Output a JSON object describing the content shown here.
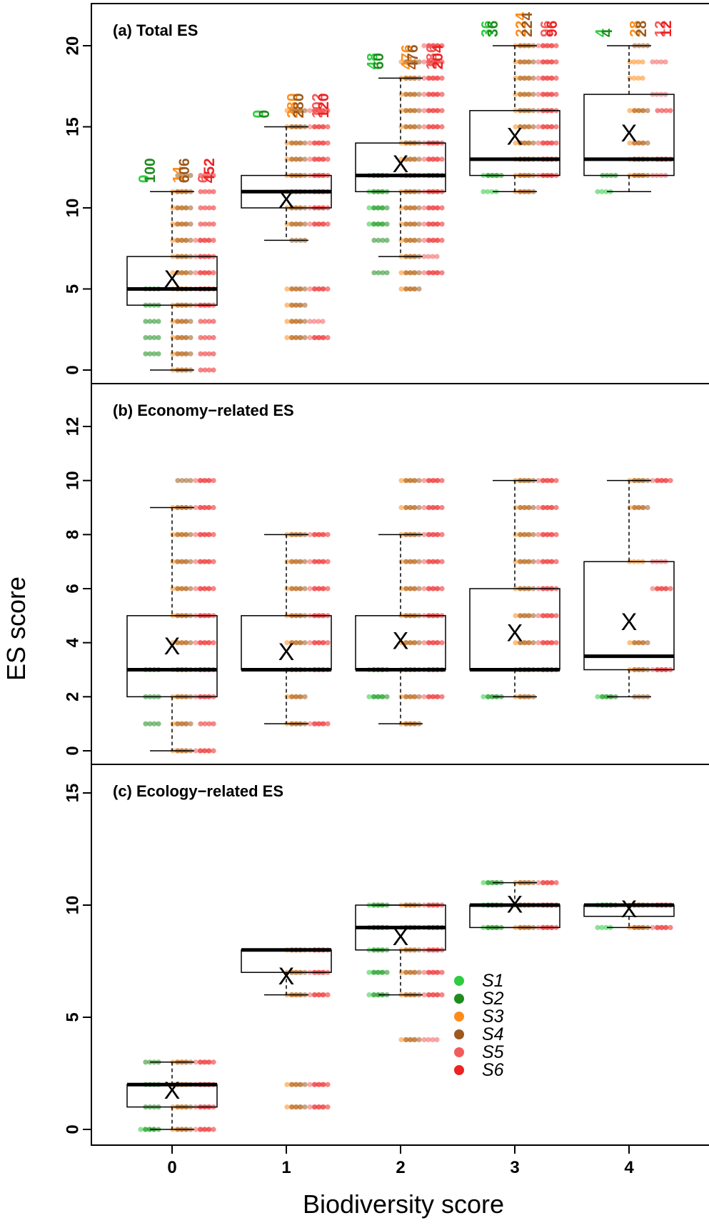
{
  "chart_data": {
    "type": "box",
    "ylabel": "ES score",
    "xlabel": "Biodiversity score",
    "categories": [
      "0",
      "1",
      "2",
      "3",
      "4"
    ],
    "legend": {
      "position": "bottom-center",
      "items": [
        {
          "name": "S1",
          "color": "#2ecc40"
        },
        {
          "name": "S2",
          "color": "#1e8c1e"
        },
        {
          "name": "S3",
          "color": "#ff8c1a"
        },
        {
          "name": "S4",
          "color": "#9c5a1e"
        },
        {
          "name": "S5",
          "color": "#f25c5c"
        },
        {
          "name": "S6",
          "color": "#ee2222"
        }
      ]
    },
    "panels": [
      {
        "title": "(a) Total ES",
        "ylim": [
          -0.5,
          22.2
        ],
        "yticks": [
          0,
          5,
          10,
          15,
          20
        ],
        "boxes": [
          {
            "x": 0,
            "min": 0,
            "q1": 4,
            "median": 5,
            "q3": 7,
            "max": 11,
            "mean": 5.5
          },
          {
            "x": 1,
            "min": 8,
            "q1": 10,
            "median": 11,
            "q3": 12,
            "max": 15,
            "mean": 10.4
          },
          {
            "x": 2,
            "min": 7,
            "q1": 11,
            "median": 12,
            "q3": 14,
            "max": 18,
            "mean": 12.6
          },
          {
            "x": 3,
            "min": 11,
            "q1": 12,
            "median": 13,
            "q3": 16,
            "max": 20,
            "mean": 14.3
          },
          {
            "x": 4,
            "min": 11,
            "q1": 12,
            "median": 13,
            "q3": 17,
            "max": 20,
            "mean": 14.5
          }
        ],
        "counts": [
          {
            "x": 0,
            "values": [
              "0",
              "100",
              "14",
              "606",
              "6",
              "452"
            ]
          },
          {
            "x": 1,
            "values": [
              "0",
              "0",
              "280",
              "280",
              "102",
              "120"
            ]
          },
          {
            "x": 2,
            "values": [
              "48",
              "60",
              "476",
              "476",
              "186",
              "204"
            ]
          },
          {
            "x": 3,
            "values": [
              "36",
              "36",
              "224",
              "224",
              "96",
              "96"
            ]
          },
          {
            "x": 4,
            "values": [
              "4",
              "4",
              "28",
              "28",
              "12",
              "12"
            ]
          }
        ],
        "points": [
          {
            "x": 0,
            "series": [
              [],
              [
                1,
                2,
                3,
                4,
                5
              ],
              [
                0,
                1,
                2,
                3,
                4,
                5,
                6,
                7,
                8,
                9,
                10,
                11
              ],
              [
                0,
                1,
                2,
                3,
                4,
                5,
                6,
                7,
                8,
                9,
                10,
                11,
                12
              ],
              [
                4,
                5,
                6,
                7,
                8
              ],
              [
                0,
                1,
                2,
                3,
                4,
                5,
                6,
                7,
                8,
                9,
                10,
                11,
                12
              ]
            ]
          },
          {
            "x": 1,
            "series": [
              [],
              [],
              [
                2,
                3,
                4,
                5,
                9,
                10,
                11,
                12,
                13,
                14,
                15,
                16
              ],
              [
                2,
                3,
                4,
                5,
                8,
                9,
                10,
                11,
                12,
                13,
                14,
                15,
                16
              ],
              [
                2,
                3,
                5,
                9,
                10,
                11,
                12,
                13,
                14,
                15,
                16
              ],
              [
                2,
                5,
                9,
                10,
                11,
                12,
                13,
                14,
                15,
                16
              ]
            ]
          },
          {
            "x": 2,
            "series": [
              [
                9,
                10,
                11,
                12
              ],
              [
                6,
                8,
                9,
                10,
                11,
                12
              ],
              [
                5,
                6,
                7,
                8,
                9,
                10,
                11,
                12,
                13,
                14,
                15,
                16,
                17,
                18,
                19
              ],
              [
                5,
                6,
                7,
                8,
                9,
                10,
                11,
                12,
                13,
                14,
                15,
                16,
                17,
                18,
                19
              ],
              [
                6,
                7,
                8,
                9,
                10,
                11,
                12,
                13,
                14,
                15,
                16,
                17,
                18,
                19,
                20
              ],
              [
                6,
                8,
                9,
                10,
                11,
                12,
                13,
                14,
                15,
                16,
                17,
                18,
                19,
                20
              ]
            ]
          },
          {
            "x": 3,
            "series": [
              [
                11,
                12
              ],
              [
                12
              ],
              [
                11,
                12,
                13,
                14,
                15,
                16,
                17,
                18,
                19,
                20
              ],
              [
                11,
                12,
                13,
                14,
                15,
                16,
                17,
                18,
                19,
                20
              ],
              [
                12,
                13,
                14,
                15,
                16,
                17,
                18,
                19,
                20
              ],
              [
                12,
                13,
                14,
                15,
                16,
                17,
                18,
                19,
                20
              ]
            ]
          },
          {
            "x": 4,
            "series": [
              [
                11
              ],
              [
                12
              ],
              [
                12,
                13,
                14,
                16,
                18,
                19
              ],
              [
                12,
                13,
                14,
                16,
                20
              ],
              [
                12,
                13,
                17,
                19
              ],
              [
                13,
                16
              ]
            ]
          }
        ]
      },
      {
        "title": "(b) Economy−related ES",
        "ylim": [
          -0.3,
          12.2
        ],
        "yticks": [
          0,
          2,
          4,
          6,
          8,
          10,
          12
        ],
        "boxes": [
          {
            "x": 0,
            "min": 0,
            "q1": 2,
            "median": 3,
            "q3": 5,
            "max": 9,
            "mean": 3.8
          },
          {
            "x": 1,
            "min": 1,
            "q1": 3,
            "median": 3,
            "q3": 5,
            "max": 8,
            "mean": 3.6
          },
          {
            "x": 2,
            "min": 1,
            "q1": 3,
            "median": 3,
            "q3": 5,
            "max": 8,
            "mean": 4.0
          },
          {
            "x": 3,
            "min": 2,
            "q1": 3,
            "median": 3,
            "q3": 6,
            "max": 10,
            "mean": 4.3
          },
          {
            "x": 4,
            "min": 2,
            "q1": 3,
            "median": 3.5,
            "q3": 7,
            "max": 10,
            "mean": 4.7
          }
        ],
        "counts": [],
        "points": [
          {
            "x": 0,
            "series": [
              [],
              [
                1,
                2,
                3
              ],
              [
                0,
                1,
                2,
                3,
                4,
                5,
                6,
                7,
                8,
                9
              ],
              [
                0,
                1,
                2,
                3,
                4,
                5,
                6,
                7,
                8,
                9,
                10
              ],
              [
                0,
                2,
                3,
                4,
                5,
                6,
                7,
                8,
                9,
                10
              ],
              [
                0,
                1,
                2,
                3,
                4,
                5,
                6,
                7,
                8,
                9,
                10
              ]
            ]
          },
          {
            "x": 1,
            "series": [
              [],
              [],
              [
                1,
                2,
                3,
                4,
                5,
                6,
                7,
                8
              ],
              [
                1,
                2,
                3,
                4,
                5,
                6,
                7,
                8
              ],
              [
                1,
                3,
                4,
                5,
                6,
                7,
                8
              ],
              [
                1,
                3,
                4,
                5,
                6,
                7,
                8
              ]
            ]
          },
          {
            "x": 2,
            "series": [
              [
                2,
                3
              ],
              [
                2,
                3
              ],
              [
                1,
                2,
                3,
                4,
                5,
                6,
                7,
                8,
                9,
                10
              ],
              [
                1,
                2,
                3,
                4,
                5,
                6,
                7,
                8,
                9,
                10
              ],
              [
                2,
                3,
                4,
                5,
                6,
                7,
                8,
                9,
                10
              ],
              [
                2,
                3,
                4,
                5,
                6,
                7,
                8,
                9,
                10
              ]
            ]
          },
          {
            "x": 3,
            "series": [
              [
                2
              ],
              [
                2
              ],
              [
                2,
                3,
                4,
                5,
                6,
                7,
                8,
                9,
                10
              ],
              [
                2,
                3,
                4,
                5,
                6,
                7,
                8,
                9,
                10
              ],
              [
                3,
                4,
                5,
                6,
                7,
                8,
                9,
                10
              ],
              [
                3,
                4,
                5,
                6,
                7,
                8,
                9,
                10
              ]
            ]
          },
          {
            "x": 4,
            "series": [
              [
                2
              ],
              [
                2
              ],
              [
                3,
                4,
                7,
                9,
                10
              ],
              [
                2,
                3,
                4,
                9,
                10
              ],
              [
                3,
                6,
                7,
                10
              ],
              [
                3,
                6,
                10
              ]
            ]
          }
        ]
      },
      {
        "title": "(c) Ecology−related ES",
        "ylim": [
          -0.4,
          15.4
        ],
        "yticks": [
          0,
          5,
          10,
          15
        ],
        "boxes": [
          {
            "x": 0,
            "min": 0,
            "q1": 1,
            "median": 2,
            "q3": 2,
            "max": 3,
            "mean": 1.65
          },
          {
            "x": 1,
            "min": 6,
            "q1": 7,
            "median": 8,
            "q3": 8,
            "max": 8,
            "mean": 6.75
          },
          {
            "x": 2,
            "min": 6,
            "q1": 8,
            "median": 9,
            "q3": 10,
            "max": 10,
            "mean": 8.5
          },
          {
            "x": 3,
            "min": 9,
            "q1": 9,
            "median": 10,
            "q3": 10,
            "max": 11,
            "mean": 9.95
          },
          {
            "x": 4,
            "min": 9,
            "q1": 9.5,
            "median": 10,
            "q3": 10,
            "max": 10,
            "mean": 9.75
          }
        ],
        "counts": [],
        "points": [
          {
            "x": 0,
            "series": [
              [
                0
              ],
              [
                0,
                1,
                2,
                3
              ],
              [
                0,
                1,
                2,
                3
              ],
              [
                0,
                1,
                2,
                3
              ],
              [
                0,
                1,
                2,
                3
              ],
              [
                0,
                1,
                2,
                3
              ]
            ]
          },
          {
            "x": 1,
            "series": [
              [],
              [],
              [
                1,
                2,
                6,
                7,
                8
              ],
              [
                1,
                2,
                6,
                7,
                8
              ],
              [
                1,
                2,
                6,
                7,
                8
              ],
              [
                1,
                2,
                6,
                7,
                8
              ]
            ]
          },
          {
            "x": 2,
            "series": [
              [
                6,
                7,
                8,
                9,
                10
              ],
              [
                6,
                7,
                8,
                9,
                10
              ],
              [
                4,
                6,
                7,
                8,
                9,
                10
              ],
              [
                4,
                6,
                7,
                8,
                9,
                10
              ],
              [
                4,
                6,
                7,
                8,
                9,
                10
              ],
              [
                6,
                7,
                8,
                9,
                10
              ]
            ]
          },
          {
            "x": 3,
            "series": [
              [
                9,
                10,
                11
              ],
              [
                9,
                10,
                11
              ],
              [
                9,
                10,
                11
              ],
              [
                9,
                10,
                11
              ],
              [
                9,
                10,
                11
              ],
              [
                9,
                10,
                11
              ]
            ]
          },
          {
            "x": 4,
            "series": [
              [
                9,
                10
              ],
              [
                10
              ],
              [
                9,
                10
              ],
              [
                9,
                10
              ],
              [
                9,
                10
              ],
              [
                9,
                10
              ]
            ]
          }
        ]
      }
    ]
  }
}
